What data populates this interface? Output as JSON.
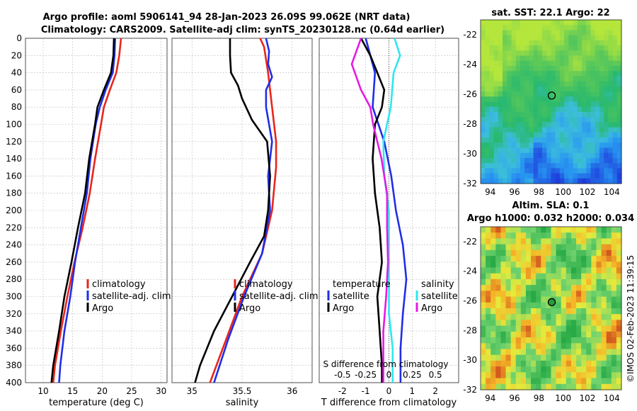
{
  "titles": {
    "main_line1": "Argo profile: aoml 5906141_94 28-Jan-2023 26.09S 99.062E (NRT data)",
    "main_line2": "Climatology: CARS2009. Satellite-adj clim: synTS_20230128.nc (0.64d earlier)",
    "sst": "sat. SST: 22.1 Argo: 22",
    "sla_line1": "Altim. SLA: 0.1",
    "sla_line2": "Argo h1000: 0.032 h2000: 0.034",
    "watermark": "©IMOS 02-Feb-2023 11:39:15"
  },
  "colors": {
    "climatology": "#e8261c",
    "satellite": "#1f2ee8",
    "argo": "#000000",
    "sat_salinity": "#2ee6f0",
    "argo_salinity": "#e619e6"
  },
  "chart_data": [
    {
      "type": "line",
      "name": "temperature",
      "xlabel": "temperature (deg C)",
      "xlim": [
        7,
        31
      ],
      "ylim": [
        400,
        0
      ],
      "xticks": [
        "10",
        "15",
        "20",
        "25",
        "30"
      ],
      "yticks": [
        "0",
        "20",
        "40",
        "60",
        "80",
        "100",
        "120",
        "140",
        "160",
        "180",
        "200",
        "220",
        "240",
        "260",
        "280",
        "300",
        "320",
        "340",
        "360",
        "380",
        "400"
      ],
      "legend": [
        "climatology",
        "satellite-adj. clim",
        "Argo"
      ],
      "series": [
        {
          "name": "climatology",
          "color": "#e8261c",
          "depth": [
            0,
            20,
            40,
            60,
            80,
            100,
            140,
            180,
            220,
            260,
            300,
            340,
            380,
            400
          ],
          "values": [
            23.2,
            22.9,
            22.4,
            21.3,
            20.3,
            19.8,
            18.8,
            17.9,
            16.7,
            15.3,
            14.1,
            13.0,
            12.0,
            11.7
          ]
        },
        {
          "name": "satellite-adj. clim",
          "color": "#1f2ee8",
          "depth": [
            0,
            20,
            40,
            60,
            80,
            100,
            140,
            180,
            220,
            260,
            300,
            340,
            380,
            400
          ],
          "values": [
            22.2,
            22.1,
            21.8,
            20.6,
            19.6,
            18.9,
            18.0,
            17.4,
            16.4,
            15.4,
            14.6,
            13.6,
            12.9,
            12.7
          ]
        },
        {
          "name": "Argo",
          "color": "#000000",
          "depth": [
            0,
            20,
            40,
            60,
            80,
            100,
            140,
            180,
            220,
            260,
            300,
            340,
            380,
            400
          ],
          "values": [
            22.0,
            21.9,
            21.5,
            20.3,
            19.2,
            18.8,
            17.8,
            17.1,
            15.9,
            14.8,
            13.6,
            12.7,
            11.7,
            11.4
          ]
        }
      ]
    },
    {
      "type": "line",
      "name": "salinity",
      "xlabel": "salinity",
      "xlim": [
        34.8,
        36.2
      ],
      "ylim": [
        400,
        0
      ],
      "xticks": [
        "35",
        "35.5",
        "36"
      ],
      "legend": [
        "climatology",
        "satellite-adj. clim",
        "Argo"
      ],
      "series": [
        {
          "name": "climatology",
          "color": "#e8261c",
          "depth": [
            0,
            10,
            40,
            80,
            120,
            150,
            200,
            250,
            300,
            350,
            400
          ],
          "values": [
            35.68,
            35.72,
            35.76,
            35.8,
            35.84,
            35.84,
            35.8,
            35.7,
            35.5,
            35.34,
            35.18
          ]
        },
        {
          "name": "satellite-adj. clim",
          "color": "#1f2ee8",
          "depth": [
            0,
            15,
            30,
            45,
            60,
            80,
            120,
            160,
            200,
            250,
            300,
            350,
            400
          ],
          "values": [
            35.74,
            35.77,
            35.76,
            35.8,
            35.74,
            35.74,
            35.8,
            35.76,
            35.78,
            35.7,
            35.52,
            35.36,
            35.22
          ]
        },
        {
          "name": "Argo",
          "color": "#000000",
          "depth": [
            0,
            20,
            40,
            55,
            70,
            95,
            120,
            160,
            200,
            230,
            260,
            300,
            340,
            380,
            400
          ],
          "values": [
            35.38,
            35.38,
            35.39,
            35.46,
            35.5,
            35.6,
            35.75,
            35.78,
            35.76,
            35.72,
            35.58,
            35.4,
            35.22,
            35.08,
            35.03
          ]
        }
      ]
    },
    {
      "type": "line",
      "name": "differences",
      "xlabel": "T difference from climatology",
      "xlabel_top": "S difference from climatology",
      "xlim": [
        -3,
        3
      ],
      "ylim": [
        400,
        0
      ],
      "xticks": [
        "-2",
        "-1",
        "0",
        "1",
        "2"
      ],
      "xticks_top": [
        "-0.5",
        "-0.25",
        "0",
        "0.25",
        "0.5"
      ],
      "legend_temperature": {
        "heading": "temperature",
        "items": [
          "satellite",
          "Argo"
        ]
      },
      "legend_salinity": {
        "heading": "salinity",
        "items": [
          "satellite",
          "Argo"
        ]
      },
      "series": [
        {
          "name": "temperature satellite",
          "color": "#1f2ee8",
          "depth": [
            0,
            40,
            80,
            120,
            160,
            200,
            240,
            280,
            320,
            360,
            400
          ],
          "values": [
            -1.0,
            -0.6,
            -0.7,
            -0.2,
            0.1,
            0.3,
            0.6,
            0.75,
            0.6,
            0.5,
            0.5
          ]
        },
        {
          "name": "temperature Argo",
          "color": "#000000",
          "depth": [
            0,
            20,
            40,
            60,
            80,
            100,
            140,
            180,
            220,
            260,
            300,
            340,
            380,
            400
          ],
          "values": [
            -1.2,
            -0.8,
            -0.5,
            -0.2,
            -0.3,
            -0.6,
            -0.7,
            -0.6,
            -0.4,
            -0.3,
            -0.5,
            -0.4,
            -0.3,
            -0.3
          ]
        },
        {
          "name": "salinity satellite",
          "color": "#2ee6f0",
          "depth": [
            0,
            20,
            40,
            80,
            120,
            160,
            200,
            240,
            280,
            320,
            360,
            400
          ],
          "values": [
            0.06,
            0.12,
            0.05,
            0.02,
            -0.06,
            -0.05,
            0.0,
            0.0,
            0.0,
            0.0,
            0.04,
            0.04
          ]
        },
        {
          "name": "salinity Argo",
          "color": "#e619e6",
          "depth": [
            0,
            30,
            60,
            80,
            100,
            140,
            180,
            220,
            260,
            300,
            340,
            380,
            400
          ],
          "values": [
            -0.3,
            -0.4,
            -0.3,
            -0.2,
            -0.17,
            -0.08,
            -0.02,
            -0.02,
            -0.01,
            -0.03,
            -0.06,
            -0.06,
            -0.06
          ]
        }
      ]
    },
    {
      "type": "heatmap",
      "name": "sst_map",
      "xlim": [
        93.2,
        104.8
      ],
      "ylim": [
        -32,
        -21
      ],
      "xticks": [
        "94",
        "96",
        "98",
        "100",
        "102",
        "104"
      ],
      "yticks": [
        "-22",
        "-24",
        "-26",
        "-28",
        "-30",
        "-32"
      ],
      "marker": {
        "lon": 99.06,
        "lat": -26.09
      }
    },
    {
      "type": "heatmap",
      "name": "sla_map",
      "xlim": [
        93.2,
        104.8
      ],
      "ylim": [
        -32,
        -21
      ],
      "xticks": [
        "94",
        "96",
        "98",
        "100",
        "102",
        "104"
      ],
      "yticks": [
        "-22",
        "-24",
        "-26",
        "-28",
        "-30",
        "-32"
      ],
      "marker": {
        "lon": 99.06,
        "lat": -26.09
      }
    }
  ]
}
